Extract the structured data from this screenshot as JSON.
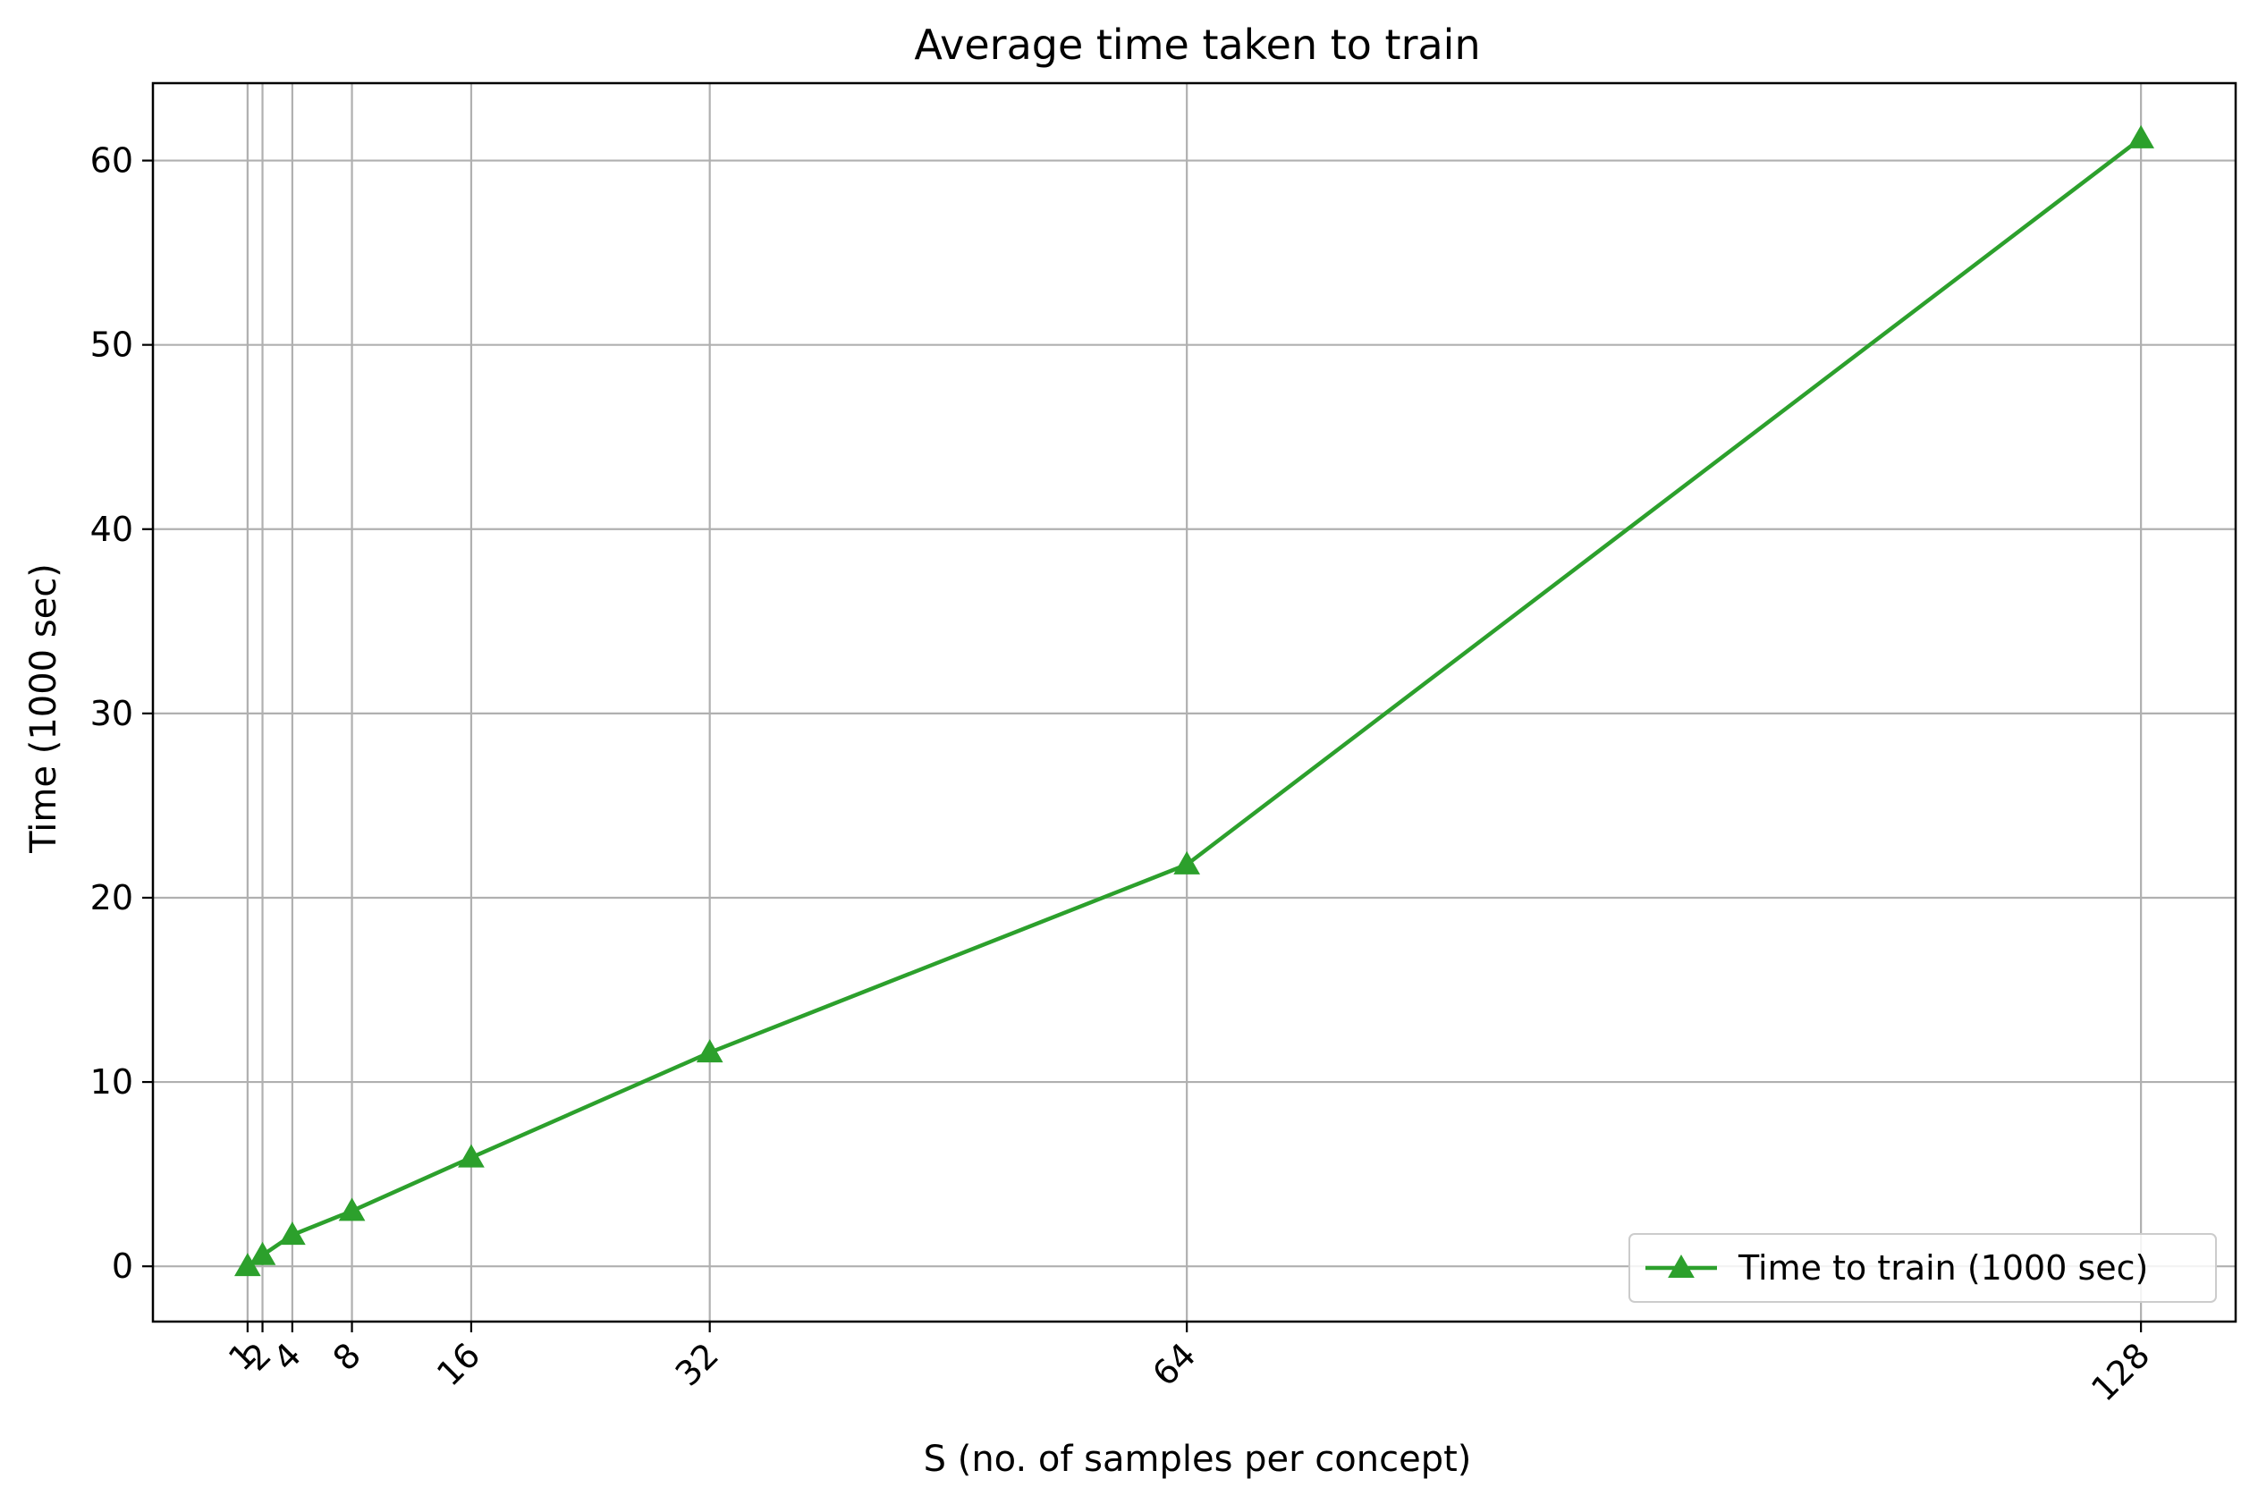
{
  "chart_data": {
    "type": "line",
    "title": "Average time taken to train",
    "xlabel": "S (no. of samples per concept)",
    "ylabel": "Time (1000 sec)",
    "xlim": [
      -5.35,
      134.35
    ],
    "ylim": [
      -3.0,
      64.2
    ],
    "xticks": [
      1,
      2,
      4,
      8,
      16,
      32,
      64,
      128
    ],
    "xtick_labels": [
      "1",
      "2",
      "4",
      "8",
      "16",
      "32",
      "64",
      "128"
    ],
    "xtick_rotation": 45,
    "yticks": [
      0,
      10,
      20,
      30,
      40,
      50,
      60
    ],
    "ytick_labels": [
      "0",
      "10",
      "20",
      "30",
      "40",
      "50",
      "60"
    ],
    "grid": true,
    "legend_position": "lower-right",
    "series": [
      {
        "name": "Time to train (1000 sec)",
        "marker": "triangle-up",
        "color": "#2ca02c",
        "x": [
          1,
          2,
          4,
          8,
          16,
          32,
          64,
          128
        ],
        "y": [
          0.0,
          0.6,
          1.7,
          3.0,
          5.9,
          11.6,
          21.8,
          61.2
        ]
      }
    ]
  }
}
